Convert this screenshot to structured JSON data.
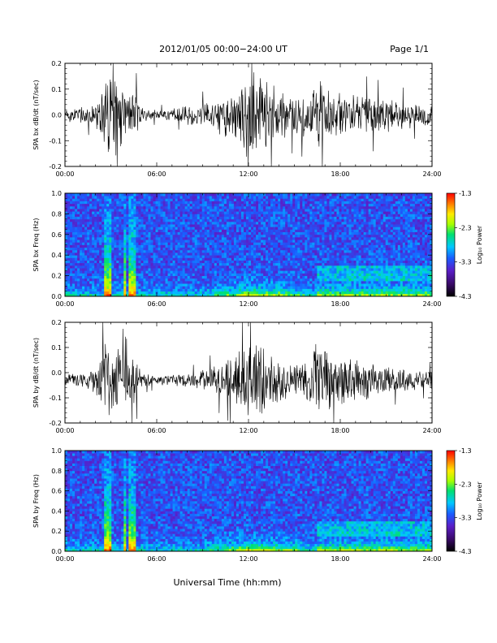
{
  "header": {
    "title": "2012/01/05  00:00−24:00 UT",
    "page": "Page 1/1"
  },
  "x_axis_label": "Universal Time (hh:mm)",
  "colors": {
    "trace": "#000000",
    "colorscale": [
      "#000000",
      "#3a0a68",
      "#5a1ec8",
      "#1a5cff",
      "#00c8ff",
      "#00e070",
      "#a8ff00",
      "#ffea00",
      "#ff7a00",
      "#ff0000"
    ]
  },
  "chart_data": [
    {
      "type": "line",
      "ylabel": "SPA bx dB/dt (nT/sec)",
      "xlim": [
        "00:00",
        "24:00"
      ],
      "ylim": [
        -0.2,
        0.2
      ],
      "x_ticks": [
        "00:00",
        "06:00",
        "12:00",
        "18:00",
        "24:00"
      ],
      "y_ticks": [
        "-0.2",
        "-0.1",
        "0.0",
        "0.1",
        "0.2"
      ],
      "series": [
        {
          "x_hours": [
            0,
            1,
            2,
            2.8,
            3,
            4,
            4.5,
            5,
            6,
            7,
            8,
            9,
            10,
            11,
            12,
            13,
            14,
            15,
            16,
            16.5,
            17,
            18,
            19,
            20,
            21,
            22,
            23,
            24
          ],
          "amplitude": [
            0.03,
            0.035,
            0.05,
            0.2,
            0.2,
            0.09,
            0.12,
            0.03,
            0.02,
            0.025,
            0.04,
            0.05,
            0.08,
            0.1,
            0.2,
            0.16,
            0.1,
            0.08,
            0.1,
            0.2,
            0.12,
            0.1,
            0.09,
            0.08,
            0.07,
            0.06,
            0.05,
            0.04
          ],
          "baseline": 0.0
        }
      ]
    },
    {
      "type": "heatmap",
      "ylabel": "SPA bx Freq (Hz)",
      "xlim": [
        "00:00",
        "24:00"
      ],
      "ylim": [
        0.0,
        1.0
      ],
      "x_ticks": [
        "00:00",
        "06:00",
        "12:00",
        "18:00",
        "24:00"
      ],
      "y_ticks": [
        "0.0",
        "0.2",
        "0.4",
        "0.6",
        "0.8",
        "1.0"
      ],
      "colorbar": {
        "label": "Log₁₀ Power",
        "range": [
          -4.3,
          -1.3
        ],
        "ticks": [
          "-1.3",
          "-2.3",
          "-3.3",
          "-4.3"
        ]
      },
      "bursts_hours": [
        2.7,
        3.0,
        3.9,
        4.2,
        4.5
      ],
      "active_band_hours": [
        16.5,
        24.0
      ],
      "active_band_freq_hz": [
        0.2,
        0.3
      ]
    },
    {
      "type": "line",
      "ylabel": "SPA by dB/dt (nT/sec)",
      "xlim": [
        "00:00",
        "24:00"
      ],
      "ylim": [
        -0.2,
        0.2
      ],
      "x_ticks": [
        "00:00",
        "06:00",
        "12:00",
        "18:00",
        "24:00"
      ],
      "y_ticks": [
        "-0.2",
        "-0.1",
        "0.0",
        "0.1",
        "0.2"
      ],
      "series": [
        {
          "x_hours": [
            0,
            1,
            2,
            2.8,
            3,
            4,
            4.5,
            5,
            6,
            7,
            8,
            9,
            10,
            11,
            12,
            13,
            14,
            15,
            16,
            16.5,
            17,
            18,
            19,
            20,
            21,
            22,
            23,
            24
          ],
          "amplitude": [
            0.03,
            0.035,
            0.05,
            0.2,
            0.2,
            0.09,
            0.12,
            0.03,
            0.02,
            0.025,
            0.03,
            0.04,
            0.07,
            0.1,
            0.2,
            0.16,
            0.1,
            0.08,
            0.1,
            0.2,
            0.15,
            0.12,
            0.09,
            0.08,
            0.06,
            0.05,
            0.04,
            0.04
          ],
          "baseline": -0.03
        }
      ]
    },
    {
      "type": "heatmap",
      "ylabel": "SPA by Freq (Hz)",
      "xlim": [
        "00:00",
        "24:00"
      ],
      "ylim": [
        0.0,
        1.0
      ],
      "x_ticks": [
        "00:00",
        "06:00",
        "12:00",
        "18:00",
        "24:00"
      ],
      "y_ticks": [
        "0.0",
        "0.2",
        "0.4",
        "0.6",
        "0.8",
        "1.0"
      ],
      "colorbar": {
        "label": "Log₁₀ Power",
        "range": [
          -4.3,
          -1.3
        ],
        "ticks": [
          "-1.3",
          "-2.3",
          "-3.3",
          "-4.3"
        ]
      },
      "bursts_hours": [
        2.7,
        3.0,
        3.9,
        4.2,
        4.5
      ],
      "active_band_hours": [
        16.5,
        24.0
      ],
      "active_band_freq_hz": [
        0.2,
        0.3
      ]
    }
  ]
}
